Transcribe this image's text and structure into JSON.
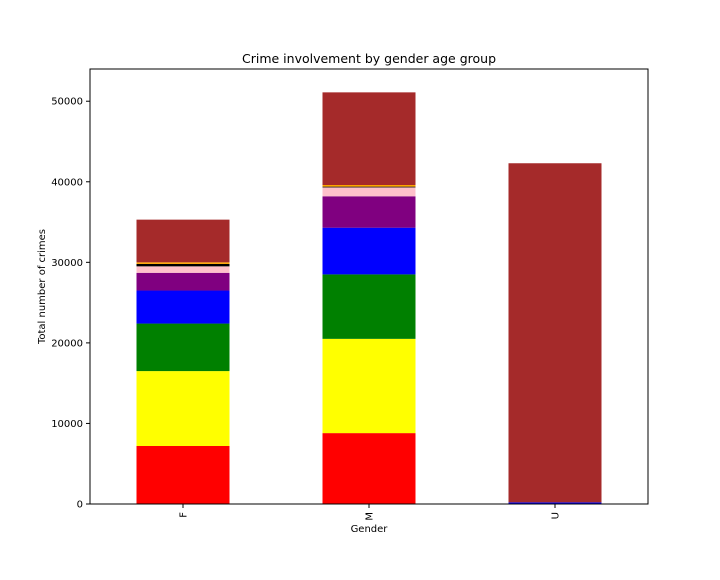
{
  "chart_data": {
    "type": "bar",
    "stacked": true,
    "title": "Crime involvement by gender age group",
    "xlabel": "Gender",
    "ylabel": "Total number of crimes",
    "categories": [
      "F",
      "M",
      "U"
    ],
    "ylim": [
      0,
      54000
    ],
    "yticks": [
      0,
      10000,
      20000,
      30000,
      40000,
      50000
    ],
    "grid": false,
    "legend": "none",
    "series": [
      {
        "color": "#ff0000",
        "values": [
          7200,
          8800,
          0
        ]
      },
      {
        "color": "#ffff00",
        "values": [
          9300,
          11700,
          0
        ]
      },
      {
        "color": "#008000",
        "values": [
          5900,
          8000,
          0
        ]
      },
      {
        "color": "#0000ff",
        "values": [
          4100,
          5800,
          200
        ]
      },
      {
        "color": "#800080",
        "values": [
          2200,
          3900,
          0
        ]
      },
      {
        "color": "#ffc0cb",
        "values": [
          800,
          1100,
          0
        ]
      },
      {
        "color": "#000000",
        "values": [
          300,
          100,
          0
        ]
      },
      {
        "color": "#ffa500",
        "values": [
          200,
          200,
          0
        ]
      },
      {
        "color": "#a52a2a",
        "values": [
          5300,
          11500,
          42100
        ]
      }
    ]
  }
}
